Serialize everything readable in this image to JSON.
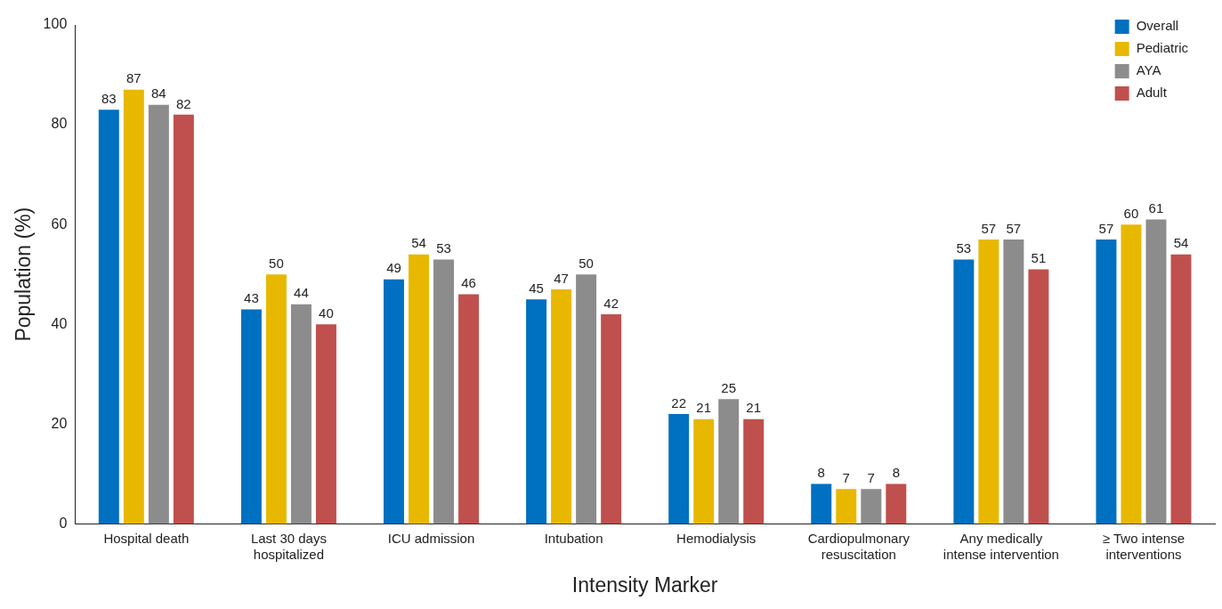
{
  "chart_data": {
    "type": "bar",
    "xlabel": "Intensity Marker",
    "ylabel": "Population (%)",
    "categories": [
      "Hospital death",
      "Last 30 days hospitalized",
      "ICU admission",
      "Intubation",
      "Hemodialysis",
      "Cardiopulmonary resuscitation",
      "Any medically intense intervention",
      "≥ Two intense interventions"
    ],
    "series": [
      {
        "name": "Overall",
        "color": "#0070c0",
        "values": [
          83,
          43,
          49,
          45,
          22,
          8,
          53,
          57
        ]
      },
      {
        "name": "Pediatric",
        "color": "#e8b800",
        "values": [
          87,
          50,
          54,
          47,
          21,
          7,
          57,
          60
        ]
      },
      {
        "name": "AYA",
        "color": "#8c8c8c",
        "values": [
          84,
          44,
          53,
          50,
          25,
          7,
          57,
          61
        ]
      },
      {
        "name": "Adult",
        "color": "#c0504d",
        "values": [
          82,
          40,
          46,
          42,
          21,
          8,
          51,
          54
        ]
      }
    ],
    "ylim": [
      0,
      100
    ],
    "yticks": [
      0,
      20,
      40,
      60,
      80,
      100
    ],
    "grid": false,
    "legend": "top right",
    "data_labels": true
  }
}
